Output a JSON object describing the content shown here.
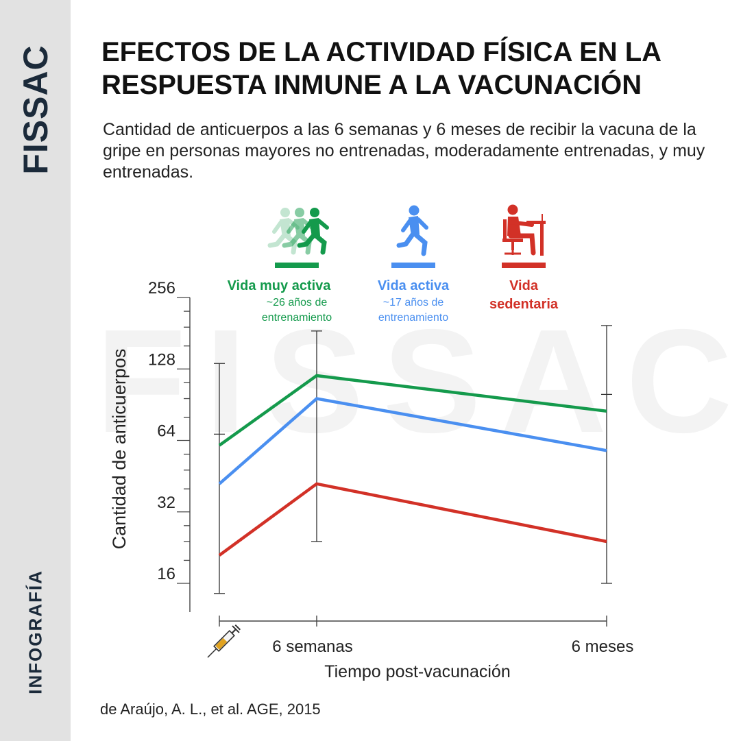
{
  "sidebar": {
    "brand": "FISSAC",
    "section": "INFOGRAFÍA"
  },
  "header": {
    "title": "EFECTOS DE LA ACTIVIDAD FÍSICA EN LA RESPUESTA INMUNE A LA VACUNACIÓN",
    "subtitle": "Cantidad de anticuerpos a las 6 semanas y 6 meses de recibir la vacuna de la gripe en personas mayores no entrenadas, moderadamente entrenadas, y muy entrenadas."
  },
  "watermark": "FISSAC",
  "citation": "de Araújo, A. L.,  et al. AGE, 2015",
  "colors": {
    "green": "#149a4c",
    "blue": "#4a8ff0",
    "red": "#d23127",
    "axis": "#444444"
  },
  "legend": [
    {
      "title": "Vida muy activa",
      "note": "~26 años de entrenamiento",
      "icon": "runners-icon",
      "color": "#149a4c"
    },
    {
      "title": "Vida activa",
      "note": "~17 años de entrenamiento",
      "icon": "runner-icon",
      "color": "#4a8ff0"
    },
    {
      "title": "Vida sedentaria",
      "note": "",
      "icon": "desk-worker-icon",
      "color": "#d23127"
    }
  ],
  "chart_data": {
    "type": "line",
    "title": "",
    "xlabel": "Tiempo post-vacunación",
    "ylabel": "Cantidad de anticuerpos",
    "y_scale": "log2",
    "ylim": [
      13,
      256
    ],
    "yticks": [
      16,
      32,
      64,
      128,
      256
    ],
    "x": [
      0,
      6,
      24
    ],
    "x_unit": "weeks",
    "xtick_labels": [
      "",
      "6 semanas",
      "6 meses"
    ],
    "x0_marker": "syringe-icon",
    "series": [
      {
        "name": "Vida muy activa",
        "color": "#149a4c",
        "values": [
          61,
          120,
          85
        ]
      },
      {
        "name": "Vida activa",
        "color": "#4a8ff0",
        "values": [
          42,
          96,
          58
        ]
      },
      {
        "name": "Vida sedentaria",
        "color": "#d23127",
        "values": [
          21,
          42,
          24
        ]
      }
    ],
    "error_bars": [
      {
        "x": 0,
        "low": 14.5,
        "high": 135
      },
      {
        "x": 6,
        "low": 24,
        "high": 185
      },
      {
        "x": 24,
        "low": 16,
        "high": 195
      }
    ]
  }
}
